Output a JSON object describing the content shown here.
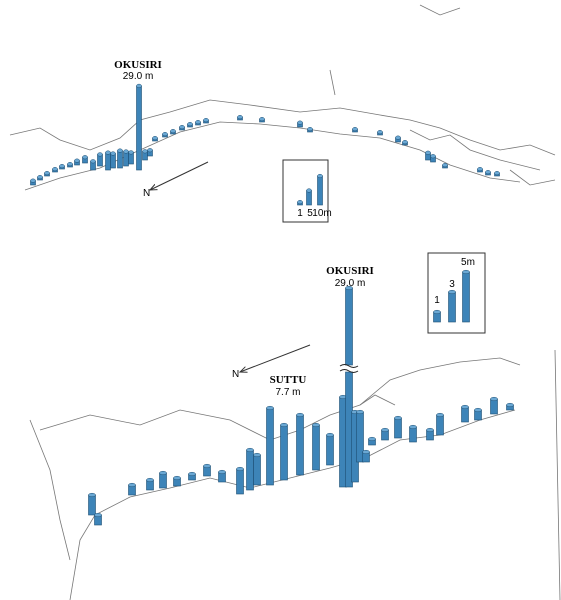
{
  "panels": [
    {
      "annotations": [
        {
          "name": "OKUSIRI",
          "height": "29.0 m"
        }
      ],
      "north": "N",
      "bars": [
        1.5,
        1,
        1,
        1,
        1,
        1,
        1.5,
        2,
        3,
        4,
        6,
        5,
        6,
        5,
        4,
        29,
        3,
        2,
        1,
        1,
        1,
        1,
        1,
        1,
        1,
        1,
        1,
        1.5,
        1,
        1,
        1,
        1.5,
        1,
        2.5,
        2,
        1,
        1,
        1,
        1
      ],
      "scale": {
        "values": [
          1,
          5,
          10
        ],
        "value_labels": [
          "1",
          "5",
          "10m"
        ]
      }
    },
    {
      "annotations": [
        {
          "name": "OKUSIRI",
          "height": "29.0 m"
        },
        {
          "name": "SUTTU",
          "height": "7.7 m"
        }
      ],
      "north": "N",
      "bars": [
        2,
        1,
        1,
        1,
        1.5,
        0.8,
        0.6,
        1,
        1,
        2.5,
        4,
        3,
        7.7,
        5.5,
        6,
        4.5,
        3,
        9,
        29,
        7,
        5,
        1,
        0.6,
        1,
        2,
        1.5,
        1,
        2,
        1.5,
        1,
        1.5,
        0.5
      ],
      "scale": {
        "values": [
          1,
          3,
          5
        ],
        "value_labels": [
          "1",
          "3",
          "5m"
        ]
      }
    }
  ]
}
